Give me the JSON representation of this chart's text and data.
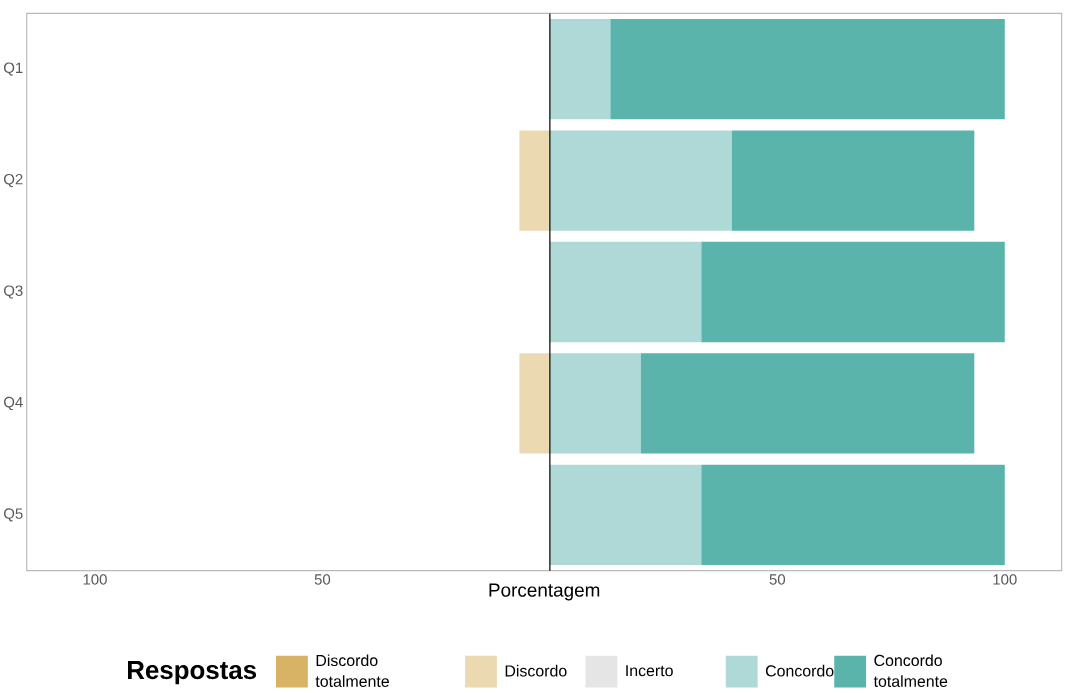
{
  "chart_data": {
    "type": "bar",
    "orientation": "horizontal",
    "stacked": true,
    "xlabel": "Porcentagem",
    "legend_title": "Respostas",
    "legend": "bottom",
    "grid": false,
    "categories": [
      "Q1",
      "Q2",
      "Q3",
      "Q4",
      "Q5"
    ],
    "series": [
      {
        "name": "Discordo totalmente",
        "color": "#d8b365",
        "values": [
          0,
          0,
          0,
          0,
          0
        ]
      },
      {
        "name": "Discordo",
        "color": "#ebd9b2",
        "values": [
          0,
          -6.7,
          0,
          -6.7,
          0
        ]
      },
      {
        "name": "Incerto",
        "color": "#e5e5e5",
        "values": [
          0,
          0,
          0,
          0,
          0
        ]
      },
      {
        "name": "Concordo",
        "color": "#aed9d6",
        "values": [
          13.3,
          40,
          33.3,
          20,
          33.3
        ]
      },
      {
        "name": "Concordo totalmente",
        "color": "#5ab4ac",
        "values": [
          86.7,
          53.3,
          66.7,
          73.3,
          66.7
        ]
      }
    ],
    "xlim": [
      -115,
      112.5
    ],
    "xticks": [
      {
        "value": -100,
        "label": "100"
      },
      {
        "value": -50,
        "label": "50"
      },
      50,
      100
    ],
    "ref_lines": [
      {
        "axis": "x",
        "value": 0,
        "color": "#000000"
      }
    ]
  }
}
